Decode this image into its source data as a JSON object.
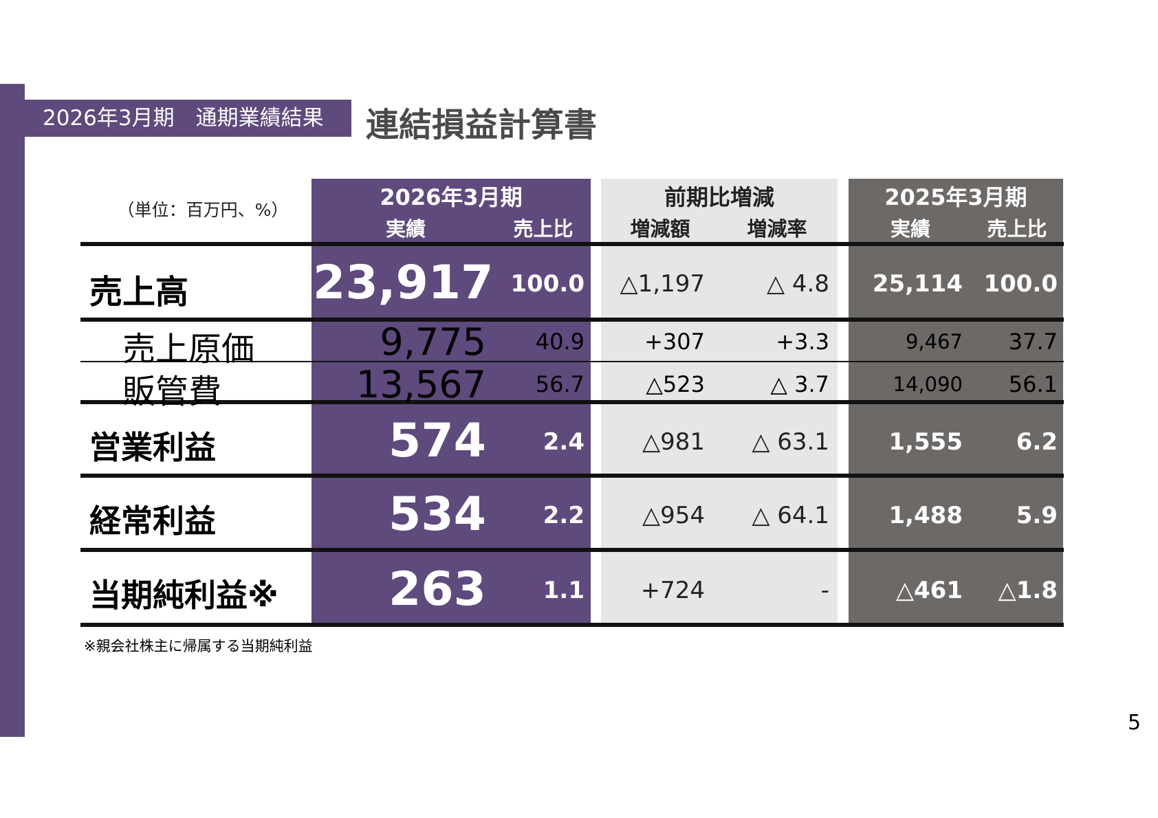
{
  "header": {
    "badge": "2026年3月期　通期業績結果",
    "title": "連結損益計算書"
  },
  "unit_label": "（単位：百万円、%）",
  "columns": {
    "current": {
      "title": "2026年3月期",
      "actual": "実績",
      "ratio": "売上比"
    },
    "change": {
      "title": "前期比増減",
      "amount": "増減額",
      "rate": "増減率"
    },
    "previous": {
      "title": "2025年3月期",
      "actual": "実績",
      "ratio": "売上比"
    }
  },
  "rows": [
    {
      "label": "売上高",
      "cur": "23,917",
      "cur_ratio": "100.0",
      "chg": "△1,197",
      "chg_rate": "△ 4.8",
      "prev": "25,114",
      "prev_ratio": "100.0"
    },
    {
      "label": "売上原価",
      "cur": "9,775",
      "cur_ratio": "40.9",
      "chg": "+307",
      "chg_rate": "+3.3",
      "prev": "9,467",
      "prev_ratio": "37.7"
    },
    {
      "label": "販管費",
      "cur": "13,567",
      "cur_ratio": "56.7",
      "chg": "△523",
      "chg_rate": "△ 3.7",
      "prev": "14,090",
      "prev_ratio": "56.1"
    },
    {
      "label": "営業利益",
      "cur": "574",
      "cur_ratio": "2.4",
      "chg": "△981",
      "chg_rate": "△ 63.1",
      "prev": "1,555",
      "prev_ratio": "6.2"
    },
    {
      "label": "経常利益",
      "cur": "534",
      "cur_ratio": "2.2",
      "chg": "△954",
      "chg_rate": "△ 64.1",
      "prev": "1,488",
      "prev_ratio": "5.9"
    },
    {
      "label": "当期純利益※",
      "cur": "263",
      "cur_ratio": "1.1",
      "chg": "+724",
      "chg_rate": "-",
      "prev": "△461",
      "prev_ratio": "△1.8"
    }
  ],
  "footnote": "※親会社株主に帰属する当期純利益",
  "page_number": "5",
  "colors": {
    "accent_purple": "#5e4a7c",
    "change_gray": "#e6e6e6",
    "previous_gray": "#6c6967"
  }
}
